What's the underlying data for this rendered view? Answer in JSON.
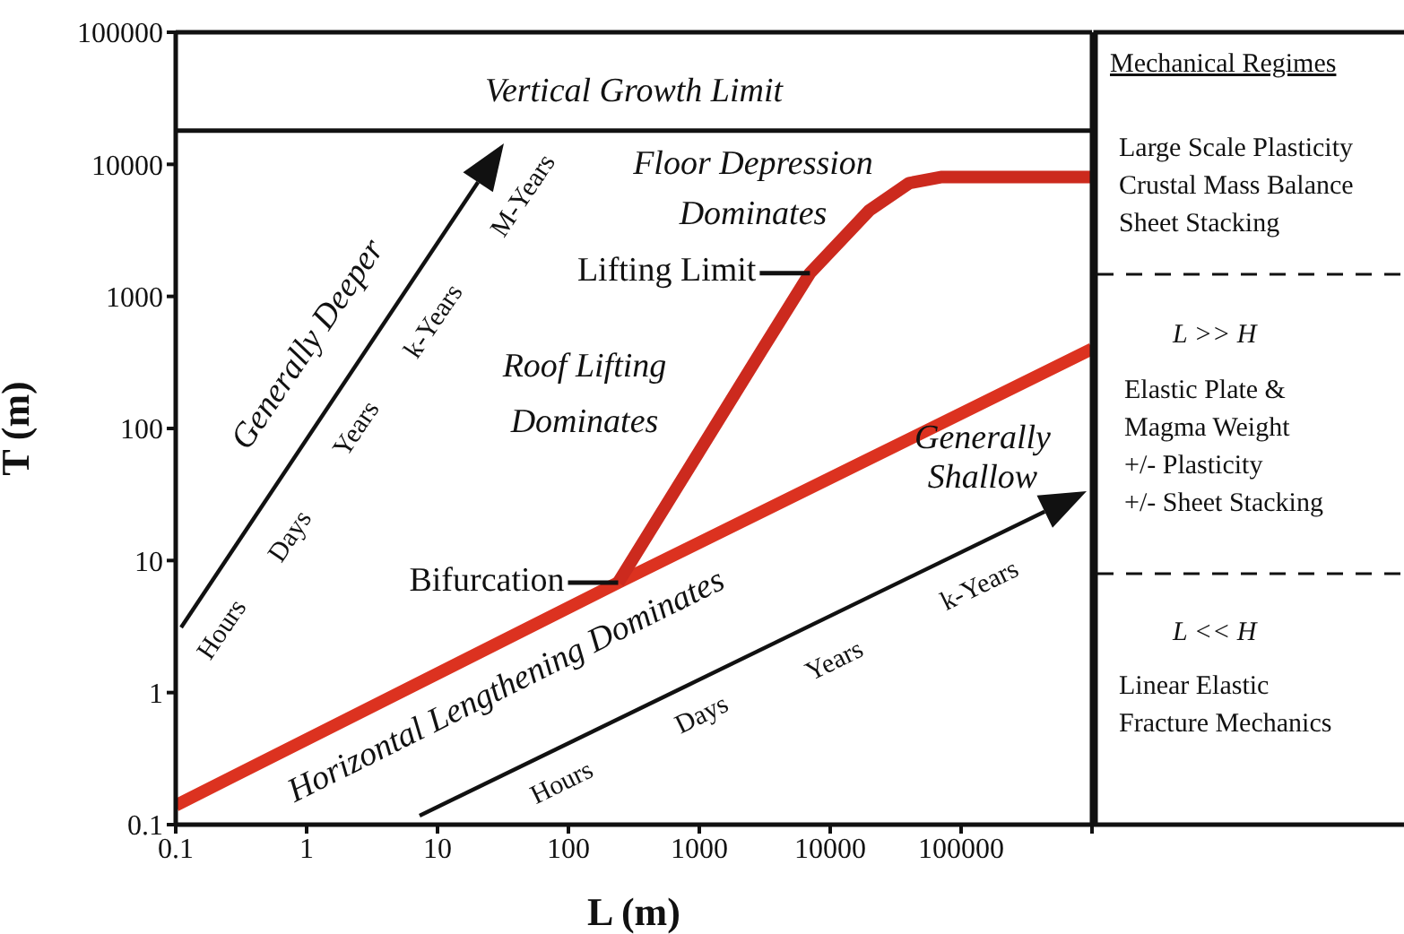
{
  "chart_data": {
    "type": "line",
    "xlabel": "L (m)",
    "ylabel": "T (m)",
    "log": "xy",
    "xlim": [
      0.1,
      1000000
    ],
    "ylim": [
      0.1,
      100000
    ],
    "xticks": [
      0.1,
      1,
      10,
      100,
      1000,
      10000,
      100000,
      {
        "value": 1000000,
        "label": null
      }
    ],
    "yticks": [
      0.1,
      1,
      10,
      100,
      1000,
      10000,
      100000
    ],
    "grid": false,
    "legend": false,
    "marker": "none",
    "line_style": "solid",
    "series": [
      {
        "color": "#dc3220",
        "x": [
          0.1,
          240,
          1000000
        ],
        "values": [
          0.14,
          6.8,
          400
        ]
      },
      {
        "color": "#cc2a1e",
        "x": [
          240,
          1000,
          3000,
          7000,
          20000,
          40000,
          70000,
          1000000
        ],
        "values": [
          6.8,
          67,
          390,
          1500,
          4500,
          7200,
          8000,
          8000
        ]
      }
    ],
    "ref_lines": [
      {
        "axis": "y",
        "value": 18000,
        "label": "Vertical Growth Limit",
        "color": "#111111"
      }
    ],
    "annotations": [
      "Floor Depression\nDominates",
      "Roof Lifting\nDominates",
      "Horizontal Lengthening Dominates",
      "Generally\nShallow",
      "Generally Deeper",
      "Hours",
      "Days",
      "Years",
      "k-Years",
      "M-Years",
      "Hours",
      "Days",
      "Years",
      "k-Years",
      {
        "text": "Lifting Limit",
        "x": 7000,
        "y": 1500
      },
      {
        "text": "Bifurcation",
        "x": 240,
        "y": 6.8
      },
      "Mechanical Regimes",
      "Large Scale Plasticity\nCrustal Mass Balance\nSheet Stacking",
      "L >> H",
      "Elastic Plate &\nMagma Weight\n+/- Plasticity\n+/- Sheet Stacking",
      "L << H",
      "Linear Elastic\nFracture Mechanics"
    ]
  }
}
